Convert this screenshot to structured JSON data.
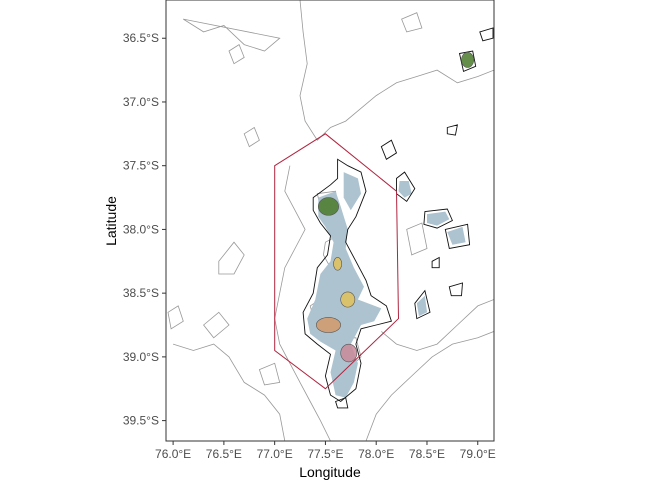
{
  "map": {
    "xlabel": "Longitude",
    "ylabel": "Latitude",
    "xlim": [
      75.93,
      79.16
    ],
    "ylim": [
      -39.66,
      -36.2
    ],
    "x_ticks": [
      {
        "value": 76.0,
        "label": "76.0°E"
      },
      {
        "value": 76.5,
        "label": "76.5°E"
      },
      {
        "value": 77.0,
        "label": "77.0°E"
      },
      {
        "value": 77.5,
        "label": "77.5°E"
      },
      {
        "value": 78.0,
        "label": "78.0°E"
      },
      {
        "value": 78.5,
        "label": "78.5°E"
      },
      {
        "value": 79.0,
        "label": "79.0°E"
      }
    ],
    "y_ticks": [
      {
        "value": -36.5,
        "label": "36.5°S"
      },
      {
        "value": -37.0,
        "label": "37.0°S"
      },
      {
        "value": -37.5,
        "label": "37.5°S"
      },
      {
        "value": -38.0,
        "label": "38.0°S"
      },
      {
        "value": -38.5,
        "label": "38.5°S"
      },
      {
        "value": -39.0,
        "label": "39.0°S"
      },
      {
        "value": -39.5,
        "label": "39.5°S"
      }
    ],
    "colors": {
      "region_boundary": "#b0243f",
      "shallow_fill": "#adc3d0",
      "contour_dark": "#111111",
      "contour_grey": "#999999",
      "peak_green": "#4a7a2a",
      "peak_yellow": "#e2c15a",
      "peak_pink": "#c98a9a",
      "peak_orange": "#d49a6a"
    },
    "region_boundary": [
      [
        77.0,
        -37.5
      ],
      [
        77.5,
        -37.25
      ],
      [
        78.2,
        -37.7
      ],
      [
        78.22,
        -38.7
      ],
      [
        77.5,
        -39.25
      ],
      [
        77.0,
        -38.95
      ]
    ],
    "peaks": [
      {
        "name": "peak-green",
        "lon": 77.53,
        "lat": -37.82,
        "rx": 0.1,
        "ry": 0.07,
        "color": "#4a7a2a"
      },
      {
        "name": "peak-orange",
        "lon": 77.53,
        "lat": -38.75,
        "rx": 0.12,
        "ry": 0.06,
        "color": "#d49a6a"
      },
      {
        "name": "peak-yellow",
        "lon": 77.72,
        "lat": -38.55,
        "rx": 0.07,
        "ry": 0.06,
        "color": "#e2c15a"
      },
      {
        "name": "peak-yellow-small",
        "lon": 77.62,
        "lat": -38.27,
        "rx": 0.04,
        "ry": 0.05,
        "color": "#e2c15a"
      },
      {
        "name": "peak-pink",
        "lon": 77.73,
        "lat": -38.97,
        "rx": 0.08,
        "ry": 0.07,
        "color": "#c98a9a"
      },
      {
        "name": "peak-dark-ne",
        "lon": 78.9,
        "lat": -36.67,
        "rx": 0.06,
        "ry": 0.06,
        "color": "#4a7a2a"
      }
    ],
    "shallow_areas": [
      [
        [
          77.43,
          -37.75
        ],
        [
          77.6,
          -37.7
        ],
        [
          77.65,
          -37.82
        ],
        [
          77.72,
          -38.0
        ],
        [
          77.7,
          -38.15
        ],
        [
          77.78,
          -38.3
        ],
        [
          77.88,
          -38.45
        ],
        [
          77.82,
          -38.55
        ],
        [
          78.05,
          -38.62
        ],
        [
          77.98,
          -38.72
        ],
        [
          77.85,
          -38.75
        ],
        [
          77.75,
          -38.9
        ],
        [
          77.82,
          -39.05
        ],
        [
          77.78,
          -39.2
        ],
        [
          77.7,
          -39.32
        ],
        [
          77.6,
          -39.3
        ],
        [
          77.55,
          -39.12
        ],
        [
          77.6,
          -38.95
        ],
        [
          77.45,
          -38.88
        ],
        [
          77.35,
          -38.82
        ],
        [
          77.32,
          -38.7
        ],
        [
          77.4,
          -38.55
        ],
        [
          77.45,
          -38.35
        ],
        [
          77.55,
          -38.25
        ],
        [
          77.58,
          -38.1
        ],
        [
          77.5,
          -37.98
        ],
        [
          77.43,
          -37.9
        ]
      ],
      [
        [
          77.68,
          -37.55
        ],
        [
          77.82,
          -37.6
        ],
        [
          77.85,
          -37.72
        ],
        [
          77.75,
          -37.85
        ],
        [
          77.68,
          -37.75
        ]
      ],
      [
        [
          78.23,
          -37.62
        ],
        [
          78.32,
          -37.62
        ],
        [
          78.35,
          -37.72
        ],
        [
          78.28,
          -37.75
        ],
        [
          78.22,
          -37.7
        ]
      ],
      [
        [
          78.5,
          -37.88
        ],
        [
          78.68,
          -37.86
        ],
        [
          78.72,
          -37.92
        ],
        [
          78.6,
          -37.97
        ],
        [
          78.5,
          -37.95
        ]
      ],
      [
        [
          78.7,
          -38.02
        ],
        [
          78.85,
          -37.98
        ],
        [
          78.88,
          -38.1
        ],
        [
          78.75,
          -38.12
        ]
      ],
      [
        [
          78.4,
          -38.58
        ],
        [
          78.48,
          -38.52
        ],
        [
          78.5,
          -38.65
        ],
        [
          78.42,
          -38.68
        ]
      ]
    ],
    "dark_contours": [
      [
        [
          77.38,
          -37.75
        ],
        [
          77.55,
          -37.65
        ],
        [
          77.62,
          -37.6
        ],
        [
          77.62,
          -37.45
        ],
        [
          77.72,
          -37.5
        ],
        [
          77.85,
          -37.55
        ],
        [
          77.9,
          -37.7
        ],
        [
          77.8,
          -37.9
        ],
        [
          77.72,
          -38.0
        ],
        [
          77.7,
          -38.1
        ],
        [
          77.8,
          -38.25
        ],
        [
          77.9,
          -38.4
        ],
        [
          77.95,
          -38.52
        ],
        [
          78.1,
          -38.6
        ],
        [
          78.15,
          -38.72
        ],
        [
          78.0,
          -38.75
        ],
        [
          77.85,
          -38.78
        ],
        [
          77.8,
          -38.9
        ],
        [
          77.85,
          -39.05
        ],
        [
          77.8,
          -39.25
        ],
        [
          77.65,
          -39.35
        ],
        [
          77.55,
          -39.3
        ],
        [
          77.5,
          -39.15
        ],
        [
          77.55,
          -38.98
        ],
        [
          77.42,
          -38.9
        ],
        [
          77.3,
          -38.82
        ],
        [
          77.28,
          -38.65
        ],
        [
          77.38,
          -38.5
        ],
        [
          77.42,
          -38.3
        ],
        [
          77.52,
          -38.2
        ],
        [
          77.55,
          -38.05
        ],
        [
          77.45,
          -37.95
        ],
        [
          77.38,
          -37.85
        ]
      ],
      [
        [
          78.2,
          -37.6
        ],
        [
          78.28,
          -37.55
        ],
        [
          78.38,
          -37.68
        ],
        [
          78.3,
          -37.78
        ],
        [
          78.2,
          -37.72
        ]
      ],
      [
        [
          78.48,
          -37.86
        ],
        [
          78.7,
          -37.84
        ],
        [
          78.75,
          -37.93
        ],
        [
          78.6,
          -37.99
        ],
        [
          78.47,
          -37.96
        ]
      ],
      [
        [
          78.68,
          -38.0
        ],
        [
          78.9,
          -37.96
        ],
        [
          78.92,
          -38.12
        ],
        [
          78.72,
          -38.15
        ]
      ],
      [
        [
          78.38,
          -38.58
        ],
        [
          78.48,
          -38.48
        ],
        [
          78.53,
          -38.65
        ],
        [
          78.4,
          -38.7
        ]
      ],
      [
        [
          78.82,
          -36.62
        ],
        [
          78.95,
          -36.6
        ],
        [
          78.98,
          -36.72
        ],
        [
          78.86,
          -36.76
        ]
      ],
      [
        [
          79.02,
          -36.45
        ],
        [
          79.15,
          -36.42
        ],
        [
          79.15,
          -36.5
        ],
        [
          79.05,
          -36.52
        ]
      ],
      [
        [
          78.7,
          -37.2
        ],
        [
          78.8,
          -37.18
        ],
        [
          78.78,
          -37.26
        ],
        [
          78.7,
          -37.25
        ]
      ],
      [
        [
          78.05,
          -37.35
        ],
        [
          78.15,
          -37.3
        ],
        [
          78.2,
          -37.4
        ],
        [
          78.1,
          -37.45
        ]
      ],
      [
        [
          78.72,
          -38.45
        ],
        [
          78.85,
          -38.42
        ],
        [
          78.84,
          -38.52
        ],
        [
          78.74,
          -38.52
        ]
      ],
      [
        [
          78.55,
          -38.25
        ],
        [
          78.62,
          -38.22
        ],
        [
          78.62,
          -38.3
        ],
        [
          78.55,
          -38.3
        ]
      ],
      [
        [
          77.6,
          -39.35
        ],
        [
          77.7,
          -39.32
        ],
        [
          77.72,
          -39.4
        ],
        [
          77.62,
          -39.4
        ]
      ]
    ],
    "grey_contours": [
      [
        [
          77.25,
          -36.2
        ],
        [
          77.28,
          -36.45
        ],
        [
          77.32,
          -36.7
        ],
        [
          77.25,
          -36.95
        ],
        [
          77.3,
          -37.15
        ],
        [
          77.42,
          -37.3
        ],
        [
          77.55,
          -37.2
        ],
        [
          77.7,
          -37.15
        ],
        [
          77.85,
          -37.05
        ],
        [
          78.0,
          -36.95
        ],
        [
          78.2,
          -36.85
        ],
        [
          78.4,
          -36.8
        ],
        [
          78.6,
          -36.75
        ],
        [
          78.8,
          -36.85
        ],
        [
          79.0,
          -36.8
        ],
        [
          79.16,
          -36.75
        ]
      ],
      [
        [
          77.15,
          -37.5
        ],
        [
          77.1,
          -37.7
        ],
        [
          77.2,
          -37.85
        ],
        [
          77.3,
          -38.0
        ],
        [
          77.2,
          -38.15
        ],
        [
          77.1,
          -38.3
        ],
        [
          77.05,
          -38.5
        ],
        [
          77.0,
          -38.7
        ],
        [
          77.05,
          -38.9
        ],
        [
          77.15,
          -39.05
        ],
        [
          77.25,
          -39.2
        ],
        [
          77.35,
          -39.35
        ],
        [
          77.45,
          -39.5
        ],
        [
          77.55,
          -39.66
        ]
      ],
      [
        [
          76.0,
          -38.9
        ],
        [
          76.2,
          -38.95
        ],
        [
          76.4,
          -38.9
        ],
        [
          76.55,
          -39.0
        ],
        [
          76.7,
          -39.2
        ],
        [
          76.9,
          -39.3
        ],
        [
          77.05,
          -39.45
        ],
        [
          77.1,
          -39.66
        ]
      ],
      [
        [
          77.9,
          -39.66
        ],
        [
          78.0,
          -39.45
        ],
        [
          78.15,
          -39.3
        ],
        [
          78.35,
          -39.15
        ],
        [
          78.55,
          -39.0
        ],
        [
          78.75,
          -38.9
        ],
        [
          79.0,
          -38.85
        ],
        [
          79.16,
          -38.8
        ]
      ],
      [
        [
          78.05,
          -38.8
        ],
        [
          78.2,
          -38.9
        ],
        [
          78.4,
          -38.95
        ],
        [
          78.6,
          -38.9
        ],
        [
          78.8,
          -38.75
        ],
        [
          79.0,
          -38.6
        ],
        [
          79.16,
          -38.55
        ]
      ],
      [
        [
          76.1,
          -36.35
        ],
        [
          76.3,
          -36.45
        ],
        [
          76.5,
          -36.4
        ],
        [
          76.7,
          -36.55
        ],
        [
          76.9,
          -36.6
        ],
        [
          77.05,
          -36.5
        ]
      ],
      [
        [
          76.45,
          -38.25
        ],
        [
          76.6,
          -38.1
        ],
        [
          76.7,
          -38.2
        ],
        [
          76.6,
          -38.35
        ],
        [
          76.45,
          -38.35
        ]
      ],
      [
        [
          76.3,
          -38.75
        ],
        [
          76.45,
          -38.65
        ],
        [
          76.55,
          -38.75
        ],
        [
          76.4,
          -38.85
        ]
      ],
      [
        [
          76.7,
          -37.25
        ],
        [
          76.8,
          -37.2
        ],
        [
          76.85,
          -37.3
        ],
        [
          76.75,
          -37.35
        ]
      ],
      [
        [
          76.55,
          -36.6
        ],
        [
          76.65,
          -36.55
        ],
        [
          76.7,
          -36.65
        ],
        [
          76.6,
          -36.7
        ]
      ],
      [
        [
          78.25,
          -36.35
        ],
        [
          78.4,
          -36.3
        ],
        [
          78.45,
          -36.42
        ],
        [
          78.3,
          -36.45
        ]
      ],
      [
        [
          76.85,
          -39.1
        ],
        [
          77.0,
          -39.05
        ],
        [
          77.05,
          -39.2
        ],
        [
          76.9,
          -39.22
        ]
      ],
      [
        [
          75.95,
          -38.65
        ],
        [
          76.05,
          -38.6
        ],
        [
          76.1,
          -38.72
        ],
        [
          75.98,
          -38.78
        ]
      ],
      [
        [
          78.3,
          -38.0
        ],
        [
          78.45,
          -37.95
        ],
        [
          78.5,
          -38.15
        ],
        [
          78.35,
          -38.2
        ]
      ],
      [
        [
          77.5,
          -38.1
        ],
        [
          77.62,
          -38.05
        ],
        [
          77.68,
          -38.2
        ],
        [
          77.55,
          -38.3
        ],
        [
          77.48,
          -38.2
        ]
      ],
      [
        [
          77.35,
          -38.6
        ],
        [
          77.5,
          -38.52
        ],
        [
          77.7,
          -38.6
        ],
        [
          77.75,
          -38.75
        ],
        [
          77.6,
          -38.85
        ],
        [
          77.42,
          -38.8
        ]
      ],
      [
        [
          77.62,
          -38.85
        ],
        [
          77.8,
          -38.85
        ],
        [
          77.85,
          -39.0
        ],
        [
          77.72,
          -39.1
        ],
        [
          77.6,
          -39.02
        ]
      ],
      [
        [
          77.42,
          -37.72
        ],
        [
          77.6,
          -37.7
        ],
        [
          77.62,
          -37.85
        ],
        [
          77.48,
          -37.92
        ]
      ]
    ]
  }
}
